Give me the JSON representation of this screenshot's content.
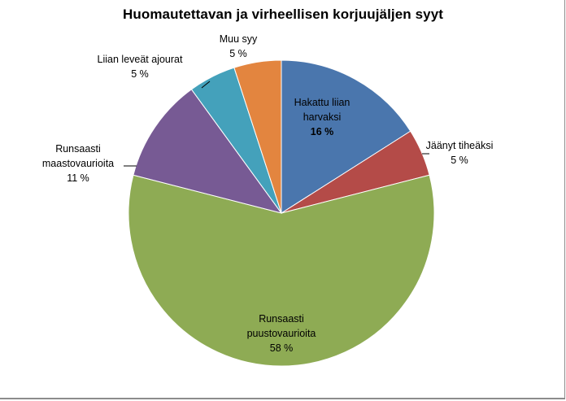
{
  "chart_data": {
    "type": "pie",
    "title": "Huomautettavan ja virheellisen korjuujäljen syyt",
    "slices": [
      {
        "label_lines": [
          "Hakattu liian",
          "harvaksi"
        ],
        "value_text": "16 %",
        "value": 16,
        "color": "#4a76ad"
      },
      {
        "label_lines": [
          "Jäänyt tiheäksi"
        ],
        "value_text": "5 %",
        "value": 5,
        "color": "#b44b48"
      },
      {
        "label_lines": [
          "Runsaasti",
          "puustovaurioita"
        ],
        "value_text": "58 %",
        "value": 58,
        "color": "#8eab54"
      },
      {
        "label_lines": [
          "Runsaasti",
          "maastovaurioita"
        ],
        "value_text": "11 %",
        "value": 11,
        "color": "#775a94"
      },
      {
        "label_lines": [
          "Liian leveät ajourat"
        ],
        "value_text": "5 %",
        "value": 5,
        "color": "#44a1bb"
      },
      {
        "label_lines": [
          "Muu syy"
        ],
        "value_text": "5 %",
        "value": 5,
        "color": "#e3853f"
      }
    ]
  }
}
